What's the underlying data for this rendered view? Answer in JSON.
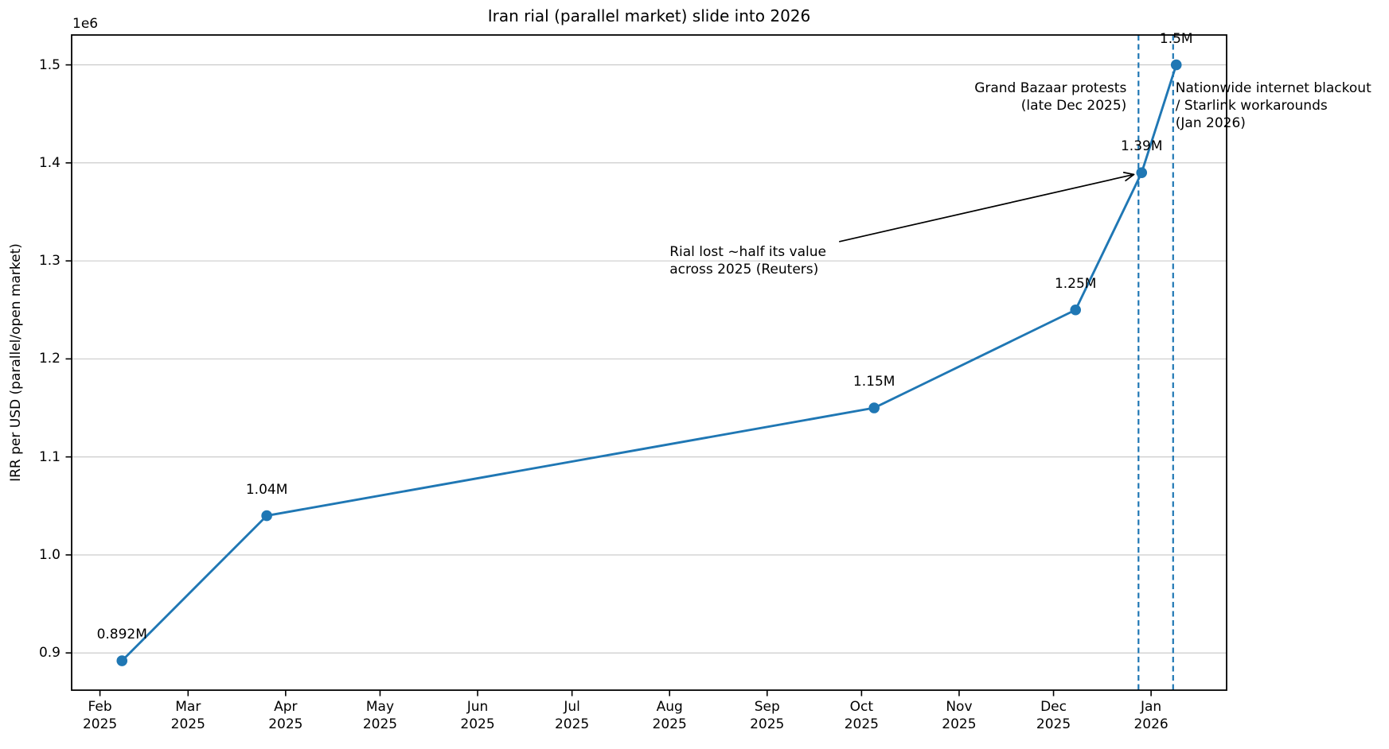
{
  "chart_data": {
    "type": "line",
    "title": "Iran rial (parallel market) slide into 2026",
    "xlabel": "",
    "ylabel": "IRR per USD (parallel/open market)",
    "y_offset_text": "1e6",
    "grid": "horizontal",
    "legend": "none",
    "xlim": [
      "2025-01-23",
      "2026-01-25"
    ],
    "ylim": [
      862000,
      1530500
    ],
    "colors": {
      "series": "#1f77b4",
      "event_line": "#1f77b4",
      "grid": "#c6c6c6",
      "spine": "#000000",
      "annotation_arrow": "#000000"
    },
    "series": [
      {
        "name": "IRR per USD (parallel/open market)",
        "color": "#1f77b4",
        "points": [
          {
            "date": "2025-02-08",
            "value": 892000,
            "label": "0.892M"
          },
          {
            "date": "2025-03-26",
            "value": 1040000,
            "label": "1.04M"
          },
          {
            "date": "2025-10-05",
            "value": 1150000,
            "label": "1.15M"
          },
          {
            "date": "2025-12-08",
            "value": 1250000,
            "label": "1.25M"
          },
          {
            "date": "2025-12-29",
            "value": 1390000,
            "label": "1.39M"
          },
          {
            "date": "2026-01-09",
            "value": 1500000,
            "label": "1.5M"
          }
        ]
      }
    ],
    "x_ticks": [
      {
        "date": "2025-02-01",
        "label": "Feb\n2025"
      },
      {
        "date": "2025-03-01",
        "label": "Mar\n2025"
      },
      {
        "date": "2025-04-01",
        "label": "Apr\n2025"
      },
      {
        "date": "2025-05-01",
        "label": "May\n2025"
      },
      {
        "date": "2025-06-01",
        "label": "Jun\n2025"
      },
      {
        "date": "2025-07-01",
        "label": "Jul\n2025"
      },
      {
        "date": "2025-08-01",
        "label": "Aug\n2025"
      },
      {
        "date": "2025-09-01",
        "label": "Sep\n2025"
      },
      {
        "date": "2025-10-01",
        "label": "Oct\n2025"
      },
      {
        "date": "2025-11-01",
        "label": "Nov\n2025"
      },
      {
        "date": "2025-12-01",
        "label": "Dec\n2025"
      },
      {
        "date": "2026-01-01",
        "label": "Jan\n2026"
      }
    ],
    "y_ticks": [
      {
        "value": 900000,
        "label": "0.9"
      },
      {
        "value": 1000000,
        "label": "1.0"
      },
      {
        "value": 1100000,
        "label": "1.1"
      },
      {
        "value": 1200000,
        "label": "1.2"
      },
      {
        "value": 1300000,
        "label": "1.3"
      },
      {
        "value": 1400000,
        "label": "1.4"
      },
      {
        "value": 1500000,
        "label": "1.5"
      }
    ],
    "events": [
      {
        "date": "2025-12-28",
        "label": "Grand Bazaar protests\n(late Dec 2025)",
        "align": "right"
      },
      {
        "date": "2026-01-08",
        "label": "Nationwide internet blackout\n/ Starlink workarounds\n(Jan 2026)",
        "align": "left"
      }
    ],
    "annotation": {
      "text": "Rial lost ~half its value\nacross 2025 (Reuters)",
      "text_anchor": {
        "date": "2025-08-01",
        "value": 1318000
      },
      "arrow_target": {
        "date": "2025-12-29",
        "value": 1390000
      }
    }
  }
}
